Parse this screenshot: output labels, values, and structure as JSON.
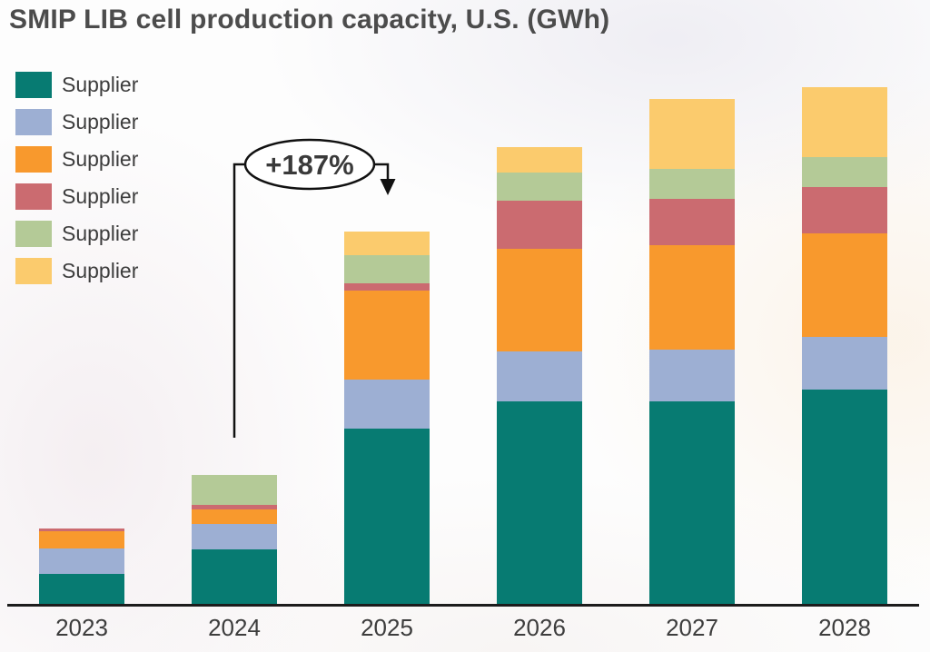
{
  "title": "SMIP LIB cell production capacity, U.S. (GWh)",
  "legend": {
    "items": [
      {
        "label": "Supplier",
        "color": "#077B72"
      },
      {
        "label": "Supplier",
        "color": "#9DAFD3"
      },
      {
        "label": "Supplier",
        "color": "#F8992D"
      },
      {
        "label": "Supplier",
        "color": "#CB6B70"
      },
      {
        "label": "Supplier",
        "color": "#B4CA97"
      },
      {
        "label": "Supplier",
        "color": "#FBCB6D"
      }
    ]
  },
  "annotation": {
    "text": "+187%",
    "from_category": "2024",
    "to_category": "2025"
  },
  "chart_data": {
    "type": "bar",
    "stacked": true,
    "title": "SMIP LIB cell production capacity, U.S. (GWh)",
    "categories": [
      "2023",
      "2024",
      "2025",
      "2026",
      "2027",
      "2028"
    ],
    "series": [
      {
        "name": "Supplier (teal)",
        "color": "#077B72",
        "values": [
          34,
          61,
          194,
          224,
          224,
          237
        ]
      },
      {
        "name": "Supplier (light blue)",
        "color": "#9DAFD3",
        "values": [
          28,
          28,
          54,
          55,
          57,
          58
        ]
      },
      {
        "name": "Supplier (orange)",
        "color": "#F8992D",
        "values": [
          19,
          16,
          98,
          113,
          115,
          114
        ]
      },
      {
        "name": "Supplier (rose)",
        "color": "#CB6B70",
        "values": [
          3,
          5,
          8,
          53,
          51,
          51
        ]
      },
      {
        "name": "Supplier (green)",
        "color": "#B4CA97",
        "values": [
          0,
          33,
          31,
          31,
          33,
          33
        ]
      },
      {
        "name": "Supplier (yellow)",
        "color": "#FBCB6D",
        "values": [
          0,
          0,
          26,
          28,
          77,
          77
        ]
      }
    ],
    "totals": [
      84,
      143,
      411,
      504,
      557,
      570
    ],
    "xlabel": "",
    "ylabel": "",
    "units": "GWh",
    "y_axis_shown": false,
    "grid": false,
    "legend_position": "top-left",
    "annotation": "+187% growth from 2024 to 2025",
    "ylim": [
      0,
      600
    ]
  }
}
